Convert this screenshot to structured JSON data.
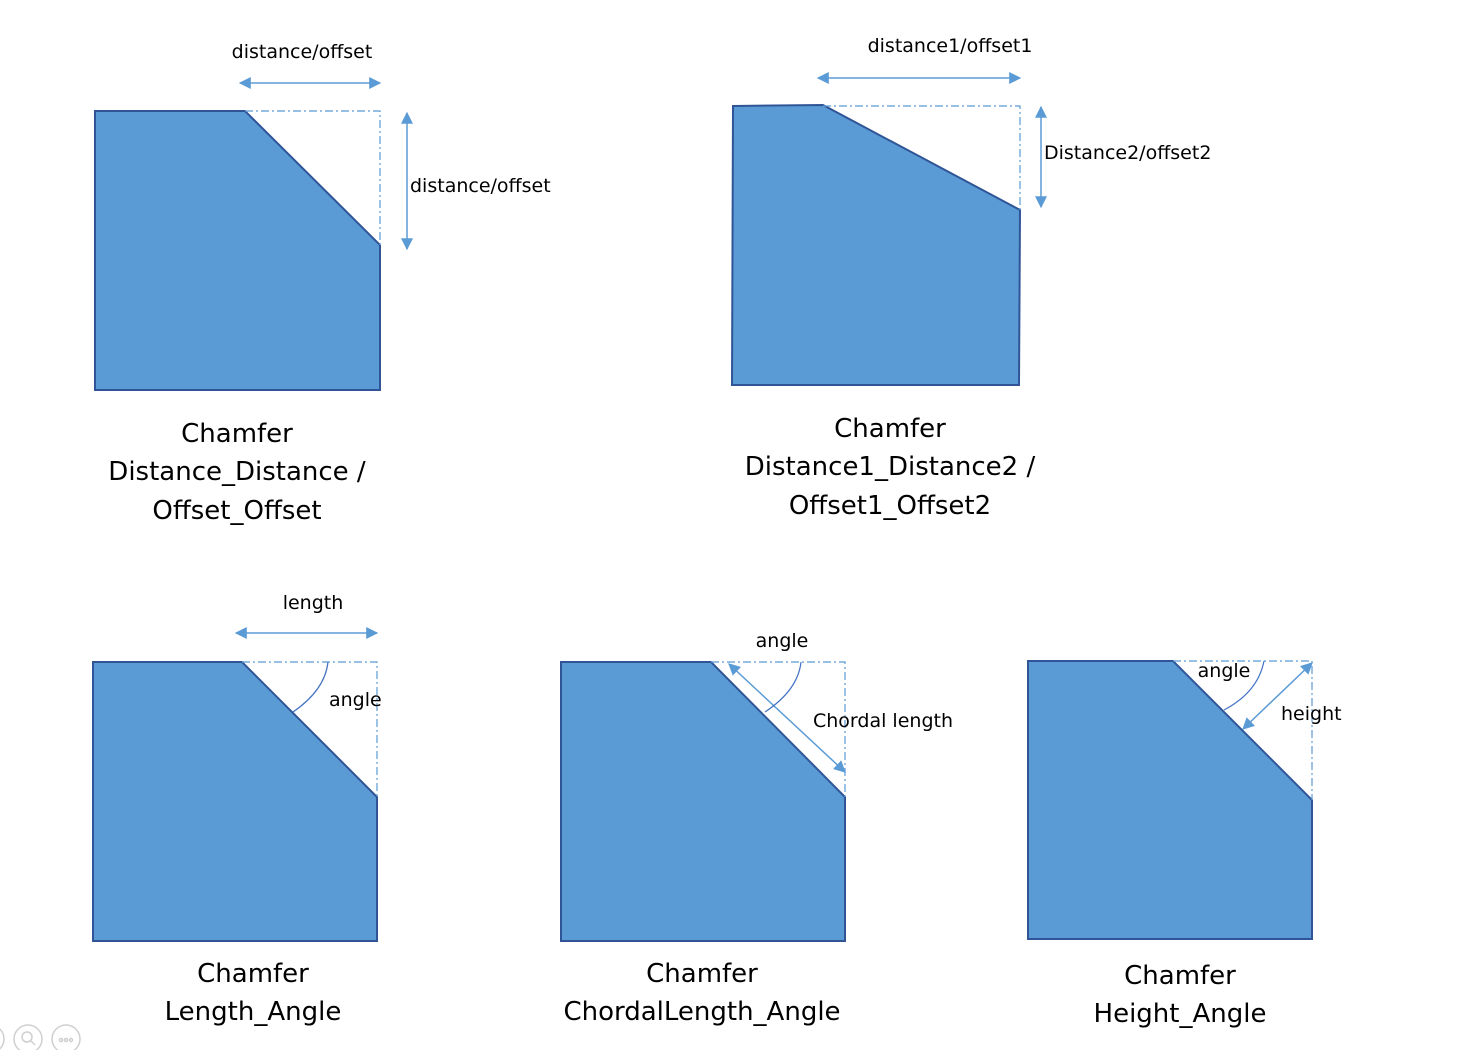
{
  "colors": {
    "fill": "#5B9BD5",
    "outline": "#2F5597",
    "dimension": "#5B9BD5"
  },
  "panels": [
    {
      "dim_labels": [
        "distance/offset",
        "distance/offset"
      ],
      "title": [
        "Chamfer",
        "Distance_Distance /",
        "Offset_Offset"
      ]
    },
    {
      "dim_labels": [
        "distance1/offset1",
        "Distance2/offset2"
      ],
      "title": [
        "Chamfer",
        "Distance1_Distance2 /",
        "Offset1_Offset2"
      ]
    },
    {
      "dim_labels": [
        "length",
        "angle"
      ],
      "title": [
        "Chamfer",
        "Length_Angle"
      ]
    },
    {
      "dim_labels": [
        "angle",
        "Chordal length"
      ],
      "title": [
        "Chamfer",
        "ChordalLength_Angle"
      ]
    },
    {
      "dim_labels": [
        "angle",
        "height"
      ],
      "title": [
        "Chamfer",
        "Height_Angle"
      ]
    }
  ],
  "controls": [
    "zoom-icon",
    "more-icon"
  ]
}
